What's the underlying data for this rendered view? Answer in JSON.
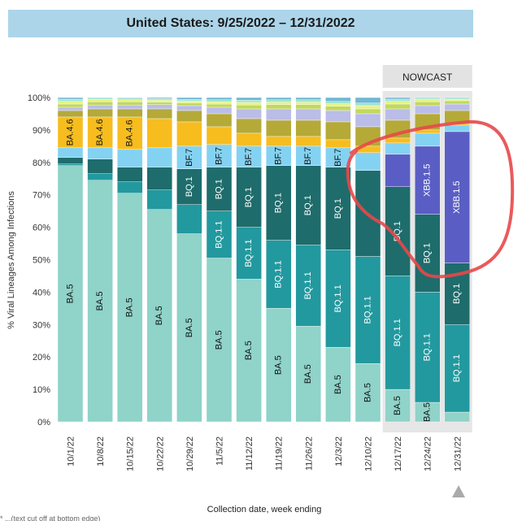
{
  "title": "United States: 9/25/2022 – 12/31/2022",
  "nowcast_label": "NOWCAST",
  "footnote": "* ...(text cut off at bottom edge)",
  "chart_data": {
    "type": "bar",
    "stacked": true,
    "title": "United States: 9/25/2022 – 12/31/2022",
    "xlabel": "Collection date, week ending",
    "ylabel": "% Viral Lineages Among Infections",
    "ylim": [
      0,
      100
    ],
    "y_ticks": [
      "0%",
      "10%",
      "20%",
      "30%",
      "40%",
      "50%",
      "60%",
      "70%",
      "80%",
      "90%",
      "100%"
    ],
    "categories": [
      "10/1/22",
      "10/8/22",
      "10/15/22",
      "10/22/22",
      "10/29/22",
      "11/5/22",
      "11/12/22",
      "11/19/22",
      "11/26/22",
      "12/3/22",
      "12/10/22",
      "12/17/22",
      "12/24/22",
      "12/31/22"
    ],
    "nowcast_categories": [
      "12/17/22",
      "12/24/22",
      "12/31/22"
    ],
    "annotations": [
      "NOWCAST",
      "red hand-drawn circle around XBB.1.5 on nowcast weeks"
    ],
    "series": [
      {
        "name": "BA.5",
        "color": "#8fd3c9",
        "values": [
          79,
          74.5,
          70.5,
          65.5,
          58,
          50.5,
          44,
          35,
          29.5,
          23,
          18,
          10,
          6,
          3
        ]
      },
      {
        "name": "BQ.1.1",
        "color": "#22999f",
        "values": [
          0.5,
          2,
          3.5,
          6,
          9,
          14.5,
          16,
          21,
          25,
          30,
          33,
          35,
          34,
          27
        ]
      },
      {
        "name": "BQ.1",
        "color": "#1f6c6c",
        "values": [
          2,
          4.5,
          4.5,
          7,
          11,
          13.5,
          18.5,
          23,
          24.5,
          25.5,
          26.5,
          27.5,
          24,
          19
        ]
      },
      {
        "name": "XBB.1.5",
        "color": "#5a5ec4",
        "values": [
          0,
          0,
          0,
          0,
          0,
          0,
          0,
          0,
          0,
          0,
          0,
          10,
          21,
          40.5
        ]
      },
      {
        "name": "BF.7",
        "color": "#84d2f2",
        "values": [
          3,
          3.5,
          5.5,
          6,
          7,
          7,
          6.5,
          6,
          6,
          6,
          5.5,
          3.5,
          4,
          2
        ]
      },
      {
        "name": "BA.4.6",
        "color": "#f7bd1f",
        "values": [
          9.5,
          9.5,
          10,
          9,
          7.5,
          5.5,
          4,
          3,
          3,
          2.5,
          2,
          1.5,
          1,
          0.5
        ]
      },
      {
        "name": "",
        "color": "#b5a938",
        "values": [
          2,
          2.5,
          2.5,
          3,
          3.5,
          4,
          4.5,
          5,
          5,
          5.5,
          6,
          5.5,
          5,
          4
        ]
      },
      {
        "name": "",
        "color": "#b9bde8",
        "values": [
          1,
          1.2,
          1.2,
          1.3,
          1.5,
          2,
          3,
          3.5,
          3.5,
          3.5,
          4,
          3.5,
          2.5,
          2
        ]
      },
      {
        "name": "",
        "color": "#c2d85e",
        "values": [
          1,
          1,
          1,
          0.8,
          0.8,
          1,
          1.2,
          1.3,
          1.3,
          1.3,
          1.5,
          1.5,
          1.2,
          1
        ]
      },
      {
        "name": "",
        "color": "#e6f285",
        "values": [
          0.8,
          0.8,
          0.6,
          0.6,
          0.6,
          0.7,
          0.8,
          0.8,
          0.8,
          0.8,
          1,
          0.8,
          0.8,
          0.5
        ]
      },
      {
        "name": "",
        "color": "#9ee3d3",
        "values": [
          0.7,
          0.5,
          0.5,
          0.5,
          0.5,
          0.6,
          0.7,
          0.7,
          0.7,
          0.7,
          0.8,
          0.7,
          0.5,
          0.5
        ]
      },
      {
        "name": "",
        "color": "#6fb8d3",
        "values": [
          0.5,
          0,
          0.2,
          0.3,
          0.6,
          0.7,
          0.8,
          0.7,
          0.7,
          1.2,
          1.7,
          0.5,
          0,
          0
        ]
      }
    ],
    "labels": {
      "BA.5": [
        true,
        true,
        true,
        true,
        true,
        true,
        true,
        true,
        true,
        true,
        true,
        true,
        true,
        false
      ],
      "BQ.1.1": [
        false,
        false,
        false,
        false,
        false,
        true,
        true,
        true,
        true,
        true,
        true,
        true,
        true,
        true
      ],
      "BQ.1": [
        false,
        false,
        false,
        false,
        true,
        true,
        true,
        true,
        true,
        true,
        false,
        true,
        true,
        true
      ],
      "XBB.1.5": [
        false,
        false,
        false,
        false,
        false,
        false,
        false,
        false,
        false,
        false,
        false,
        false,
        true,
        true
      ],
      "BF.7": [
        false,
        false,
        false,
        false,
        true,
        true,
        true,
        true,
        true,
        true,
        false,
        false,
        false,
        false
      ],
      "BA.4.6": [
        true,
        true,
        true,
        false,
        false,
        false,
        false,
        false,
        false,
        false,
        false,
        false,
        false,
        false
      ]
    }
  }
}
